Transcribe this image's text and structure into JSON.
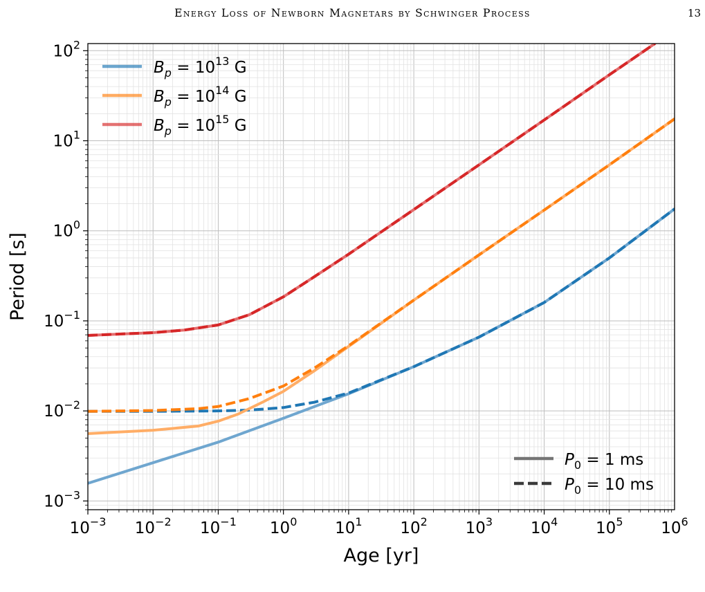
{
  "page": {
    "header_title": "Energy Loss of Newborn Magnetars by Schwinger Process",
    "page_number": "13"
  },
  "chart_data": {
    "type": "line",
    "xlabel": "Age [yr]",
    "ylabel": "Period [s]",
    "xscale": "log",
    "yscale": "log",
    "xlim": [
      0.001,
      1000000
    ],
    "ylim": [
      0.0008,
      120
    ],
    "grid": true,
    "x_ticks": [
      {
        "value": 0.001,
        "base": "10",
        "exp": "−3"
      },
      {
        "value": 0.01,
        "base": "10",
        "exp": "−2"
      },
      {
        "value": 0.1,
        "base": "10",
        "exp": "−1"
      },
      {
        "value": 1,
        "base": "10",
        "exp": "0"
      },
      {
        "value": 10,
        "base": "10",
        "exp": "1"
      },
      {
        "value": 100,
        "base": "10",
        "exp": "2"
      },
      {
        "value": 1000,
        "base": "10",
        "exp": "3"
      },
      {
        "value": 10000,
        "base": "10",
        "exp": "4"
      },
      {
        "value": 100000,
        "base": "10",
        "exp": "5"
      },
      {
        "value": 1000000,
        "base": "10",
        "exp": "6"
      }
    ],
    "y_ticks": [
      {
        "value": 0.001,
        "base": "10",
        "exp": "−3"
      },
      {
        "value": 0.01,
        "base": "10",
        "exp": "−2"
      },
      {
        "value": 0.1,
        "base": "10",
        "exp": "−1"
      },
      {
        "value": 1,
        "base": "10",
        "exp": "0"
      },
      {
        "value": 10,
        "base": "10",
        "exp": "1"
      },
      {
        "value": 100,
        "base": "10",
        "exp": "2"
      }
    ],
    "legend_field": {
      "placement": "top-left",
      "entries": [
        {
          "sym": "B",
          "sub": "p",
          "rel": " = 10",
          "exp": "13",
          "unit": " G",
          "color": "#1f77b4"
        },
        {
          "sym": "B",
          "sub": "p",
          "rel": " = 10",
          "exp": "14",
          "unit": " G",
          "color": "#ff7f0e"
        },
        {
          "sym": "B",
          "sub": "p",
          "rel": " = 10",
          "exp": "15",
          "unit": " G",
          "color": "#d62728"
        }
      ]
    },
    "legend_period": {
      "placement": "bottom-right",
      "entries": [
        {
          "sym": "P",
          "sub": "0",
          "rel": " = 1",
          "unit": " ms",
          "style": "solid"
        },
        {
          "sym": "P",
          "sub": "0",
          "rel": " = 10",
          "unit": " ms",
          "style": "dashed"
        }
      ]
    },
    "series": [
      {
        "field": "1e13",
        "p0": "1 ms",
        "style": "solid",
        "color": "#6fa6cf",
        "x": [
          0.001,
          0.01,
          0.1,
          1,
          10,
          100,
          1000,
          10000,
          100000,
          1000000
        ],
        "y": [
          0.00157,
          0.00266,
          0.0045,
          0.0083,
          0.0155,
          0.031,
          0.066,
          0.16,
          0.5,
          1.75
        ]
      },
      {
        "field": "1e13",
        "p0": "10 ms",
        "style": "dashed",
        "color": "#1f77b4",
        "x": [
          0.001,
          0.01,
          0.1,
          0.3,
          1,
          3,
          10,
          100,
          1000,
          10000,
          100000,
          1000000
        ],
        "y": [
          0.0099,
          0.0099,
          0.01,
          0.0102,
          0.0109,
          0.0125,
          0.0158,
          0.031,
          0.066,
          0.16,
          0.5,
          1.75
        ]
      },
      {
        "field": "1e14",
        "p0": "1 ms",
        "style": "solid",
        "color": "#ffad66",
        "x": [
          0.001,
          0.01,
          0.05,
          0.1,
          0.2,
          0.5,
          1,
          3,
          10,
          100,
          1000,
          10000,
          100000,
          1000000
        ],
        "y": [
          0.0056,
          0.0061,
          0.0068,
          0.0077,
          0.0092,
          0.0127,
          0.0165,
          0.028,
          0.052,
          0.17,
          0.54,
          1.7,
          5.4,
          17.5
        ]
      },
      {
        "field": "1e14",
        "p0": "10 ms",
        "style": "dashed",
        "color": "#ff7f0e",
        "x": [
          0.001,
          0.01,
          0.05,
          0.1,
          0.3,
          1,
          3,
          10,
          100,
          1000,
          10000,
          100000,
          1000000
        ],
        "y": [
          0.0099,
          0.0101,
          0.0106,
          0.0112,
          0.0137,
          0.0189,
          0.03,
          0.053,
          0.17,
          0.54,
          1.7,
          5.4,
          17.5
        ]
      },
      {
        "field": "1e15",
        "p0": "1 ms",
        "style": "solid",
        "color": "#e36c6d",
        "x": [
          0.001,
          0.01,
          0.03,
          0.1,
          0.3,
          1,
          3,
          10,
          100,
          1000,
          10000,
          100000,
          500000
        ],
        "y": [
          0.069,
          0.074,
          0.079,
          0.09,
          0.117,
          0.185,
          0.31,
          0.55,
          1.72,
          5.4,
          17,
          54,
          120
        ]
      },
      {
        "field": "1e15",
        "p0": "10 ms",
        "style": "dashed",
        "color": "#d62728",
        "x": [
          0.001,
          0.01,
          0.03,
          0.1,
          0.3,
          1,
          3,
          10,
          100,
          1000,
          10000,
          100000,
          500000
        ],
        "y": [
          0.069,
          0.074,
          0.079,
          0.09,
          0.117,
          0.185,
          0.31,
          0.55,
          1.72,
          5.4,
          17,
          54,
          120
        ]
      }
    ]
  }
}
